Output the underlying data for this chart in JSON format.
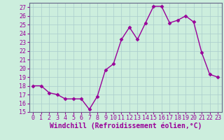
{
  "x": [
    0,
    1,
    2,
    3,
    4,
    5,
    6,
    7,
    8,
    9,
    10,
    11,
    12,
    13,
    14,
    15,
    16,
    17,
    18,
    19,
    20,
    21,
    22,
    23
  ],
  "y": [
    18,
    18,
    17.2,
    17,
    16.5,
    16.5,
    16.5,
    15.3,
    16.8,
    19.8,
    20.5,
    23.3,
    24.7,
    23.3,
    25.2,
    27.1,
    27.1,
    25.2,
    25.5,
    26.0,
    25.3,
    21.8,
    19.3,
    19.0
  ],
  "line_color": "#990099",
  "marker": "D",
  "markersize": 2.5,
  "linewidth": 1.0,
  "bg_color": "#cceedd",
  "grid_color": "#aacccc",
  "xlabel": "Windchill (Refroidissement éolien,°C)",
  "xlim": [
    -0.5,
    23.5
  ],
  "ylim": [
    15,
    27.5
  ],
  "yticks": [
    15,
    16,
    17,
    18,
    19,
    20,
    21,
    22,
    23,
    24,
    25,
    26,
    27
  ],
  "xticks": [
    0,
    1,
    2,
    3,
    4,
    5,
    6,
    7,
    8,
    9,
    10,
    11,
    12,
    13,
    14,
    15,
    16,
    17,
    18,
    19,
    20,
    21,
    22,
    23
  ],
  "xlabel_fontsize": 7.0,
  "tick_fontsize": 6.0
}
